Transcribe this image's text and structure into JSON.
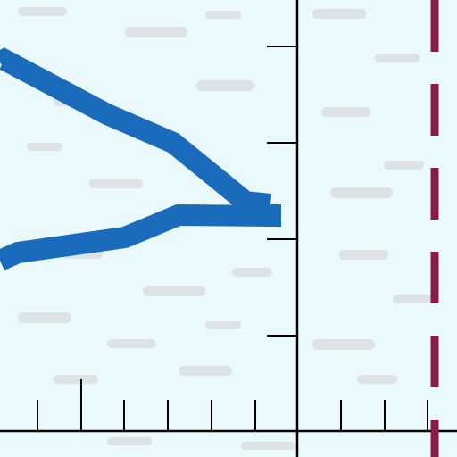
{
  "diagram": {
    "background_color": "#eaf9fc",
    "texture_color": "#d7d9db",
    "axis_color": "#000000",
    "curve_color": "#1a6bbb",
    "asymptote_color": "#8b1a4b",
    "asymptote_style": "dashed",
    "labels": []
  }
}
